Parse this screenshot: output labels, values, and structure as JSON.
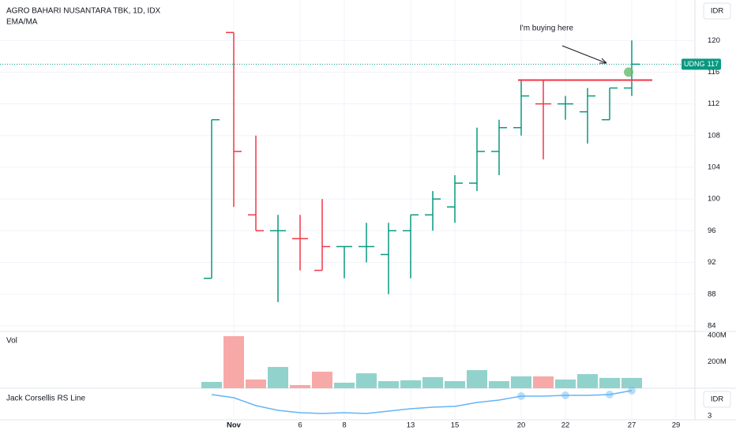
{
  "chart_data": {
    "type": "ohlc",
    "title": "AGRO BAHARI NUSANTARA TBK, 1D, IDX",
    "indicator": "EMA/MA",
    "currency": "IDR",
    "annotation": "I'm buying here",
    "categories": [
      null,
      "Nov",
      null,
      null,
      "6",
      null,
      "8",
      null,
      null,
      "13",
      null,
      "15",
      null,
      null,
      "20",
      null,
      "22",
      null,
      null,
      "27",
      null,
      "29"
    ],
    "open": [
      90,
      121,
      98,
      96,
      95,
      91,
      94,
      94,
      93,
      96,
      98,
      99,
      102,
      106,
      109,
      112,
      112,
      111,
      110,
      114,
      null,
      null
    ],
    "high": [
      110,
      121,
      108,
      98,
      98,
      100,
      94,
      97,
      97,
      98,
      101,
      103,
      109,
      110,
      115,
      115,
      113,
      114,
      114,
      120,
      null,
      null
    ],
    "low": [
      90,
      99,
      96,
      87,
      91,
      91,
      90,
      92,
      88,
      90,
      96,
      97,
      101,
      103,
      108,
      105,
      110,
      107,
      110,
      113,
      null,
      null
    ],
    "close": [
      110,
      106,
      96,
      96,
      95,
      94,
      94,
      94,
      96,
      98,
      100,
      102,
      106,
      109,
      113,
      112,
      112,
      113,
      114,
      117,
      null,
      null
    ],
    "up_color": "#089981",
    "down_color": "#f23645",
    "ylim": [
      83.3,
      125.1
    ],
    "yticks": [
      84,
      88,
      92,
      96,
      100,
      104,
      108,
      112,
      116,
      120
    ],
    "grid": true,
    "level": 115,
    "level_color": "#f23645",
    "marker_price": 116,
    "last_price": {
      "name": "UDNG",
      "value": 117
    },
    "volume": {
      "title": "Vol",
      "values": [
        48,
        394,
        66,
        161,
        24,
        125,
        42,
        113,
        54,
        60,
        84,
        54,
        137,
        54,
        90,
        90,
        66,
        107,
        78,
        78,
        null,
        null
      ],
      "ylim": [
        0,
        430
      ],
      "yticks": [
        {
          "value": 200,
          "label": "200M"
        },
        {
          "value": 400,
          "label": "400M"
        }
      ],
      "up_color": "#92d2cc",
      "down_color": "#f7a9a7"
    },
    "rs_line": {
      "title": "Jack Corsellis RS Line",
      "currency": "IDR",
      "values": [
        3.54,
        3.46,
        3.26,
        3.14,
        3.08,
        3.06,
        3.08,
        3.06,
        3.12,
        3.18,
        3.22,
        3.24,
        3.34,
        3.4,
        3.5,
        3.5,
        3.52,
        3.52,
        3.54,
        3.64,
        null,
        null
      ],
      "markers": [
        14,
        16,
        18,
        19
      ],
      "color": "#64b5f6",
      "ylim": [
        2.9,
        3.7
      ],
      "yticks": [
        3
      ]
    }
  }
}
